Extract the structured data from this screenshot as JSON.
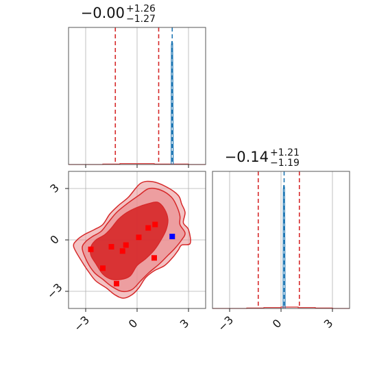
{
  "chart_data": {
    "type": "corner",
    "colors": {
      "posterior": "#d62728",
      "posterior_fill_inner": "#d62728",
      "posterior_fill_outer": "#ea8f91",
      "truth_line": "#1f77b4",
      "truth_marker": "#0000ff",
      "sample_marker": "#ff0000",
      "grid": "#b0b0b0"
    },
    "panels": [
      {
        "id": "marginal-x",
        "type": "histogram",
        "title": {
          "median": "−0.00",
          "plus": "+1.26",
          "minus": "−1.27"
        },
        "xlim": [
          -4.0,
          4.0
        ],
        "xticks": [
          -3,
          0,
          3
        ],
        "show_tick_labels": false,
        "quantile_lines": [
          -1.27,
          0.0,
          1.26
        ],
        "median_line_visible": false,
        "truth_value": 2.05,
        "histogram": {
          "bin_edges": [
            -4.0,
            -3.0,
            -2.0,
            -1.0,
            0.0,
            1.0,
            2.0,
            3.0,
            4.0
          ],
          "red_counts": [
            0,
            0,
            1,
            2,
            2,
            1,
            1,
            0
          ],
          "blue_peak_x": 2.05,
          "blue_peak_height": 0.9
        }
      },
      {
        "id": "marginal-y",
        "type": "histogram",
        "title": {
          "median": "−0.14",
          "plus": "+1.21",
          "minus": "−1.19"
        },
        "xlim": [
          -4.0,
          4.0
        ],
        "xticks": [
          -3,
          0,
          3
        ],
        "tick_labels": [
          "−3",
          "0",
          "3"
        ],
        "quantile_lines": [
          -1.33,
          -0.14,
          1.07
        ],
        "median_line_visible": false,
        "truth_value": 0.18,
        "histogram": {
          "bin_edges": [
            -4.0,
            -3.0,
            -2.0,
            -1.0,
            0.0,
            1.0,
            2.0,
            3.0,
            4.0
          ],
          "red_counts": [
            0,
            0,
            1,
            2,
            3,
            2,
            1,
            0
          ],
          "blue_peak_x": 0.18,
          "blue_peak_height": 0.9
        }
      },
      {
        "id": "joint",
        "type": "contour",
        "xlim": [
          -4.0,
          4.0
        ],
        "ylim": [
          -4.0,
          4.0
        ],
        "xticks": [
          -3,
          0,
          3
        ],
        "yticks": [
          -3,
          0,
          3
        ],
        "xtick_labels": [
          "−3",
          "0",
          "3"
        ],
        "ytick_labels": [
          "−3",
          "0",
          "3"
        ],
        "contours": {
          "outer": [
            [
              -3.7,
              -0.4
            ],
            [
              -3.5,
              0.0
            ],
            [
              -3.1,
              0.3
            ],
            [
              -2.5,
              0.6
            ],
            [
              -2.0,
              0.9
            ],
            [
              -1.6,
              1.5
            ],
            [
              -1.1,
              2.0
            ],
            [
              -0.5,
              2.5
            ],
            [
              0.2,
              3.3
            ],
            [
              0.9,
              3.4
            ],
            [
              1.7,
              3.1
            ],
            [
              2.4,
              2.6
            ],
            [
              2.6,
              2.1
            ],
            [
              2.8,
              1.6
            ],
            [
              2.7,
              1.0
            ],
            [
              3.0,
              0.6
            ],
            [
              3.1,
              -0.2
            ],
            [
              2.6,
              -0.3
            ],
            [
              2.4,
              -0.6
            ],
            [
              2.1,
              -1.0
            ],
            [
              1.6,
              -1.5
            ],
            [
              1.0,
              -1.8
            ],
            [
              0.5,
              -2.2
            ],
            [
              0.1,
              -2.8
            ],
            [
              -0.3,
              -3.2
            ],
            [
              -0.8,
              -3.4
            ],
            [
              -1.3,
              -3.2
            ],
            [
              -1.8,
              -2.8
            ],
            [
              -2.4,
              -2.4
            ],
            [
              -2.8,
              -1.9
            ],
            [
              -3.2,
              -1.3
            ]
          ],
          "middle": [
            [
              -3.2,
              -0.5
            ],
            [
              -3.0,
              -0.1
            ],
            [
              -2.6,
              0.2
            ],
            [
              -2.1,
              0.5
            ],
            [
              -1.7,
              1.0
            ],
            [
              -1.2,
              1.6
            ],
            [
              -0.6,
              2.1
            ],
            [
              0.1,
              2.6
            ],
            [
              0.7,
              3.0
            ],
            [
              1.4,
              2.9
            ],
            [
              2.0,
              2.5
            ],
            [
              2.3,
              2.0
            ],
            [
              2.5,
              1.4
            ],
            [
              2.5,
              0.9
            ],
            [
              2.8,
              0.4
            ],
            [
              2.6,
              0.0
            ],
            [
              2.2,
              -0.5
            ],
            [
              1.8,
              -0.9
            ],
            [
              1.3,
              -1.4
            ],
            [
              0.7,
              -1.9
            ],
            [
              0.2,
              -2.4
            ],
            [
              -0.3,
              -2.9
            ],
            [
              -0.9,
              -3.0
            ],
            [
              -1.5,
              -2.7
            ],
            [
              -2.0,
              -2.3
            ],
            [
              -2.5,
              -1.9
            ],
            [
              -2.9,
              -1.3
            ]
          ],
          "inner": [
            [
              -2.7,
              -0.4
            ],
            [
              -2.4,
              0.0
            ],
            [
              -1.9,
              0.3
            ],
            [
              -1.5,
              0.7
            ],
            [
              -1.1,
              1.2
            ],
            [
              -0.6,
              1.6
            ],
            [
              0.0,
              1.9
            ],
            [
              0.6,
              2.1
            ],
            [
              1.2,
              2.2
            ],
            [
              1.6,
              1.8
            ],
            [
              1.8,
              1.2
            ],
            [
              1.7,
              0.6
            ],
            [
              1.4,
              0.0
            ],
            [
              1.0,
              -0.6
            ],
            [
              0.5,
              -1.1
            ],
            [
              0.0,
              -1.5
            ],
            [
              -0.4,
              -2.1
            ],
            [
              -0.9,
              -2.3
            ],
            [
              -1.5,
              -2.3
            ],
            [
              -2.0,
              -2.0
            ],
            [
              -2.4,
              -1.4
            ],
            [
              -2.7,
              -0.9
            ]
          ]
        },
        "samples": [
          {
            "x": -2.7,
            "y": -0.55
          },
          {
            "x": -2.0,
            "y": -1.65
          },
          {
            "x": -1.5,
            "y": -0.4
          },
          {
            "x": -1.2,
            "y": -2.55
          },
          {
            "x": -0.65,
            "y": -0.3
          },
          {
            "x": -0.85,
            "y": -0.65
          },
          {
            "x": 0.1,
            "y": 0.15
          },
          {
            "x": 0.65,
            "y": 0.7
          },
          {
            "x": 1.05,
            "y": 0.9
          },
          {
            "x": 1.0,
            "y": -1.05
          }
        ],
        "truth_point": {
          "x": 2.05,
          "y": 0.2
        }
      }
    ]
  }
}
